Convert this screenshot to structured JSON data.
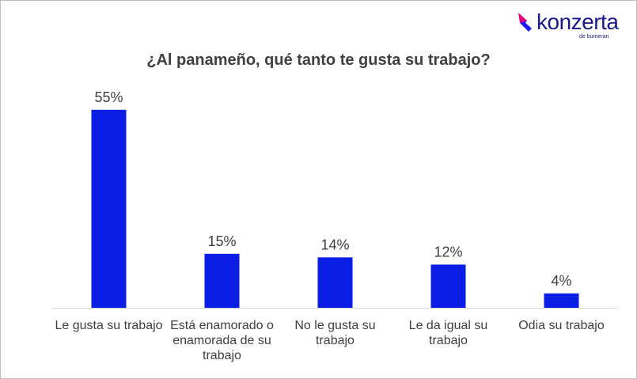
{
  "brand": {
    "name": "konzerta",
    "tagline": "de bumeran",
    "colors": {
      "mark_pink": "#e6007e",
      "mark_blue": "#1a1aff",
      "text": "#1a1a8c"
    },
    "icon": "konzerta-logo-icon"
  },
  "colors": {
    "bar": "#0a1ee6",
    "axis": "#d9d9d9",
    "text": "#404040"
  },
  "chart_data": {
    "type": "bar",
    "title": "¿Al panameño, qué tanto te gusta su trabajo?",
    "categories": [
      "Le gusta su trabajo",
      "Está enamorado o enamorada de su trabajo",
      "No le gusta su trabajo",
      "Le da igual su trabajo",
      "Odia su trabajo"
    ],
    "values": [
      55,
      15,
      14,
      12,
      4
    ],
    "data_labels": [
      "55%",
      "15%",
      "14%",
      "12%",
      "4%"
    ],
    "unit": "%",
    "ylim": [
      0,
      60
    ],
    "grid": false,
    "legend": "none"
  }
}
